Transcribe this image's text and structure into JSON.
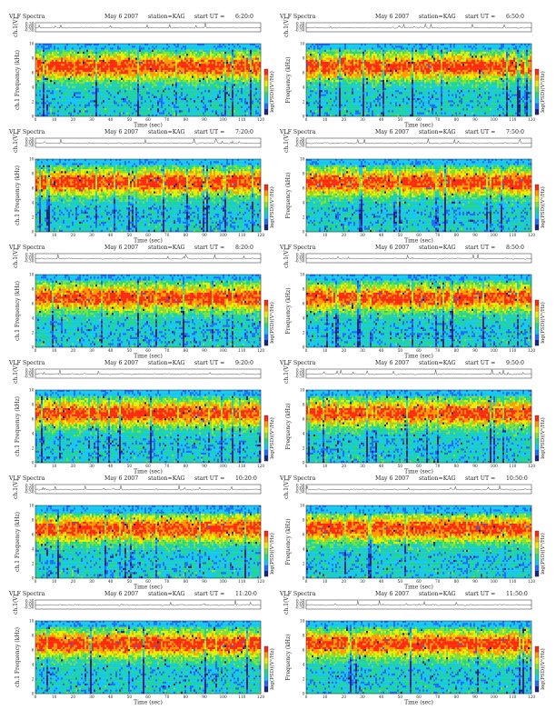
{
  "figure": {
    "title": "VLF Spectra",
    "date": "May 6 2007",
    "station": "station=KAG",
    "start_prefix": "start  UT ="
  },
  "colors": {
    "background": "#ffffff",
    "axes": "#222222",
    "colormap": [
      "#1a237e",
      "#1e6cff",
      "#16c8f0",
      "#22d68a",
      "#7ee23a",
      "#e8f000",
      "#ff9a00",
      "#ff2a10"
    ]
  },
  "chart_data": [
    {
      "type": "heatmap",
      "start_ut": "6:20:0",
      "ylabel_top": "ch.1(V)",
      "ylabel_main": "ch.1  Frequency  (kHz)",
      "xlabel": "Time  (sec)",
      "colorbar_label": "log(PSD)(V²/Hz)",
      "x_ticks": [
        0,
        10,
        20,
        30,
        40,
        50,
        60,
        70,
        80,
        90,
        100,
        110,
        120
      ],
      "xlim": [
        0,
        120
      ],
      "y_ticks": [
        0,
        2,
        4,
        6,
        8,
        10
      ],
      "ylim": [
        0,
        10
      ],
      "amp_ticks": [
        "0.30",
        "0.00",
        "-0.30"
      ],
      "cutoff_khz": 9.1
    },
    {
      "type": "heatmap",
      "start_ut": "6:50:0",
      "ylabel_top": "ch.1(V)",
      "ylabel_main": "Frequency  (kHz)",
      "xlabel": "Time  (sec)",
      "colorbar_label": "log(PSD)(V²/Hz)",
      "x_ticks": [
        0,
        10,
        20,
        30,
        40,
        50,
        60,
        70,
        80,
        90,
        100,
        110,
        120
      ],
      "xlim": [
        0,
        120
      ],
      "y_ticks": [
        0,
        2,
        4,
        6,
        8,
        10
      ],
      "ylim": [
        0,
        10
      ],
      "amp_ticks": [
        "0.30",
        "0.00",
        "-0.30"
      ],
      "cutoff_khz": 9.3
    },
    {
      "type": "heatmap",
      "start_ut": "7:20:0",
      "ylabel_top": "ch.1(V)",
      "ylabel_main": "ch.1  Frequency  (kHz)",
      "xlabel": "Time  (sec)",
      "colorbar_label": "log(PSD)(V²/Hz)",
      "x_ticks": [
        0,
        10,
        20,
        30,
        40,
        50,
        60,
        70,
        80,
        90,
        100,
        110,
        120
      ],
      "xlim": [
        0,
        120
      ],
      "y_ticks": [
        0,
        2,
        4,
        6,
        8,
        10
      ],
      "ylim": [
        0,
        10
      ],
      "amp_ticks": [
        "0.30",
        "0.00",
        "-0.30"
      ],
      "cutoff_khz": 9.1
    },
    {
      "type": "heatmap",
      "start_ut": "7:50:0",
      "ylabel_top": "ch.1(V)",
      "ylabel_main": "Frequency  (kHz)",
      "xlabel": "Time  (sec)",
      "colorbar_label": "log(PSD)(V²/Hz)",
      "x_ticks": [
        0,
        10,
        20,
        30,
        40,
        50,
        60,
        70,
        80,
        90,
        100,
        110,
        120
      ],
      "xlim": [
        0,
        120
      ],
      "y_ticks": [
        0,
        2,
        4,
        6,
        8,
        10
      ],
      "ylim": [
        0,
        10
      ],
      "amp_ticks": [
        "0.30",
        "0.00",
        "-0.30"
      ],
      "cutoff_khz": 9.1
    },
    {
      "type": "heatmap",
      "start_ut": "8:20:0",
      "ylabel_top": "ch.1(V)",
      "ylabel_main": "ch.1  Frequency  (kHz)",
      "xlabel": "Time  (sec)",
      "colorbar_label": "log(PSD)(V²/Hz)",
      "x_ticks": [
        0,
        10,
        20,
        30,
        40,
        50,
        60,
        70,
        80,
        90,
        100,
        110,
        120
      ],
      "xlim": [
        0,
        120
      ],
      "y_ticks": [
        0,
        2,
        4,
        6,
        8,
        10
      ],
      "ylim": [
        0,
        10
      ],
      "amp_ticks": [
        "0.30",
        "0.00",
        "-0.30"
      ],
      "cutoff_khz": 9.1
    },
    {
      "type": "heatmap",
      "start_ut": "8:50:0",
      "ylabel_top": "ch.1(V)",
      "ylabel_main": "Frequency  (kHz)",
      "xlabel": "Time  (sec)",
      "colorbar_label": "log(PSD)(V²/Hz)",
      "x_ticks": [
        0,
        10,
        20,
        30,
        40,
        50,
        60,
        70,
        80,
        90,
        100,
        110,
        120
      ],
      "xlim": [
        0,
        120
      ],
      "y_ticks": [
        0,
        2,
        4,
        6,
        8,
        10
      ],
      "ylim": [
        0,
        10
      ],
      "amp_ticks": [
        "0.30",
        "0.00",
        "-0.30"
      ],
      "cutoff_khz": 9.1
    },
    {
      "type": "heatmap",
      "start_ut": "9:20:0",
      "ylabel_top": "ch.1(V)",
      "ylabel_main": "ch.1  Frequency  (kHz)",
      "xlabel": "Time  (sec)",
      "colorbar_label": "log(PSD)(V²/Hz)",
      "x_ticks": [
        0,
        10,
        20,
        30,
        40,
        50,
        60,
        70,
        80,
        90,
        100,
        110,
        120
      ],
      "xlim": [
        0,
        120
      ],
      "y_ticks": [
        0,
        2,
        4,
        6,
        8,
        10
      ],
      "ylim": [
        0,
        10
      ],
      "amp_ticks": [
        "0.30",
        "0.00",
        "-0.30"
      ],
      "cutoff_khz": 9.1
    },
    {
      "type": "heatmap",
      "start_ut": "9:50:0",
      "ylabel_top": "ch.1(V)",
      "ylabel_main": "Frequency  (kHz)",
      "xlabel": "Time  (sec)",
      "colorbar_label": "log(PSD)(V²/Hz)",
      "x_ticks": [
        0,
        10,
        20,
        30,
        40,
        50,
        60,
        70,
        80,
        90,
        100,
        110,
        120
      ],
      "xlim": [
        0,
        120
      ],
      "y_ticks": [
        0,
        2,
        4,
        6,
        8,
        10
      ],
      "ylim": [
        0,
        10
      ],
      "amp_ticks": [
        "0.30",
        "0.00",
        "-0.30"
      ],
      "cutoff_khz": 9.1
    },
    {
      "type": "heatmap",
      "start_ut": "10:20:0",
      "ylabel_top": "ch.1(V)",
      "ylabel_main": "ch.1  Frequency  (kHz)",
      "xlabel": "Time  (sec)",
      "colorbar_label": "log(PSD)(V²/Hz)",
      "x_ticks": [
        0,
        10,
        20,
        30,
        40,
        50,
        60,
        70,
        80,
        90,
        100,
        110,
        120
      ],
      "xlim": [
        0,
        120
      ],
      "y_ticks": [
        0,
        2,
        4,
        6,
        8,
        10
      ],
      "ylim": [
        0,
        10
      ],
      "amp_ticks": [
        "0.30",
        "0.00",
        "-0.30"
      ],
      "cutoff_khz": 9.0
    },
    {
      "type": "heatmap",
      "start_ut": "10:50:0",
      "ylabel_top": "ch.1(V)",
      "ylabel_main": "Frequency  (kHz)",
      "xlabel": "Time  (sec)",
      "colorbar_label": "log(PSD)(V²/Hz)",
      "x_ticks": [
        0,
        10,
        20,
        30,
        40,
        50,
        60,
        70,
        80,
        90,
        100,
        110,
        120
      ],
      "xlim": [
        0,
        120
      ],
      "y_ticks": [
        0,
        2,
        4,
        6,
        8,
        10
      ],
      "ylim": [
        0,
        10
      ],
      "amp_ticks": [
        "0.30",
        "0.00",
        "-0.30"
      ],
      "cutoff_khz": 9.0
    },
    {
      "type": "heatmap",
      "start_ut": "11:20:0",
      "ylabel_top": "ch.1(V)",
      "ylabel_main": "ch.1  Frequency  (kHz)",
      "xlabel": "Time  (sec)",
      "colorbar_label": "log(PSD)(V²/Hz)",
      "x_ticks": [
        0,
        10,
        20,
        30,
        40,
        50,
        60,
        70,
        80,
        90,
        100,
        110,
        120
      ],
      "xlim": [
        0,
        120
      ],
      "y_ticks": [
        0,
        2,
        4,
        6,
        8,
        10
      ],
      "ylim": [
        0,
        10
      ],
      "amp_ticks": [
        "0.30",
        "0.00",
        "-0.30"
      ],
      "cutoff_khz": 9.3
    },
    {
      "type": "heatmap",
      "start_ut": "11:50:0",
      "ylabel_top": "ch.1(V)",
      "ylabel_main": "Frequency  (kHz)",
      "xlabel": "Time  (sec)",
      "colorbar_label": "log(PSD)(V²/Hz)",
      "x_ticks": [
        0,
        10,
        20,
        30,
        40,
        50,
        60,
        70,
        80,
        90,
        100,
        110,
        120
      ],
      "xlim": [
        0,
        120
      ],
      "y_ticks": [
        0,
        2,
        4,
        6,
        8,
        10
      ],
      "ylim": [
        0,
        10
      ],
      "amp_ticks": [
        "0.30",
        "0.00",
        "-0.30"
      ],
      "cutoff_khz": 9.3
    }
  ]
}
